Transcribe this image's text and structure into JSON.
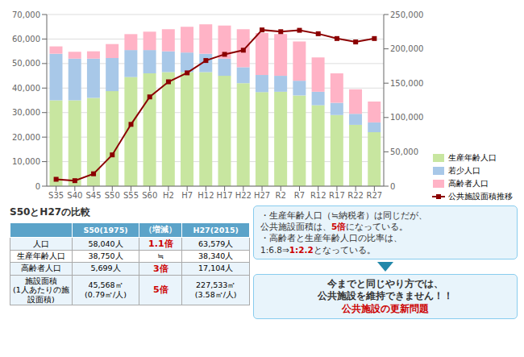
{
  "chart_data": {
    "type": "bar",
    "title": "S50とH27の比較",
    "stacked": true,
    "grid": true,
    "legend": "lower right",
    "categories": [
      "S35",
      "S40",
      "S45",
      "S50",
      "S55",
      "S60",
      "H2",
      "H7",
      "H12",
      "H17",
      "H22",
      "H27",
      "R2",
      "R7",
      "R12",
      "R17",
      "R22",
      "R27"
    ],
    "series": [
      {
        "name": "生産年齢人口",
        "color": "#c8e6a0",
        "values": [
          35000,
          35000,
          36000,
          38750,
          44500,
          46000,
          46500,
          46500,
          46500,
          45000,
          42000,
          38340,
          38500,
          37000,
          33000,
          29000,
          25000,
          22000
        ]
      },
      {
        "name": "若少人口",
        "color": "#a8c8e8",
        "values": [
          19000,
          17000,
          16000,
          13500,
          11000,
          9500,
          8500,
          8000,
          7500,
          7000,
          6500,
          7000,
          6500,
          6000,
          5500,
          5000,
          4500,
          4000
        ]
      },
      {
        "name": "高齢者人口",
        "color": "#ffb3c6",
        "values": [
          3000,
          2800,
          3000,
          5699,
          6500,
          7500,
          9000,
          10500,
          12000,
          13500,
          15500,
          17104,
          17000,
          16000,
          14000,
          12000,
          10000,
          8500
        ]
      },
      {
        "name": "公共施設面積推移",
        "type": "line",
        "axis": "y2",
        "color": "#8B0000",
        "marker": "square",
        "values": [
          10000,
          8000,
          18000,
          45568,
          90000,
          130000,
          152000,
          165000,
          183000,
          192000,
          198000,
          227533,
          225000,
          227000,
          222000,
          215000,
          210000,
          215000
        ]
      }
    ],
    "ylim": [
      0,
      70000
    ],
    "yticks": [
      0,
      {
        "value": 10000,
        "label": "10,000"
      },
      {
        "value": 20000,
        "label": "20,000"
      },
      {
        "value": 30000,
        "label": "30,000"
      },
      {
        "value": 40000,
        "label": "40,000"
      },
      {
        "value": 50000,
        "label": "50,000"
      },
      {
        "value": 60000,
        "label": "60,000"
      },
      {
        "value": 70000,
        "label": "70,000"
      }
    ],
    "y2lim": [
      0,
      250000
    ],
    "y2ticks": [
      0,
      {
        "value": 50000,
        "label": "50,000"
      },
      {
        "value": 100000,
        "label": "100,000"
      },
      {
        "value": 150000,
        "label": "150,000"
      },
      {
        "value": 200000,
        "label": "200,000"
      },
      {
        "value": 250000,
        "label": "250,000"
      }
    ],
    "table": {
      "columns": [
        null,
        "S50(1975)",
        "（増減）",
        "H27(2015)"
      ],
      "rows": [
        [
          "人口",
          "58,040人",
          {
            "text": "1.1倍",
            "color": "#cc0000"
          },
          "63,579人"
        ],
        [
          "生産年齢人口",
          "38,750人",
          "≒",
          "38,340人"
        ],
        [
          "高齢者人口",
          "5,699人",
          {
            "text": "3倍",
            "color": "#cc0000"
          },
          "17,104人"
        ],
        [
          "施設面積\n(1人あたりの施\n設面積)",
          "45,568㎡\n(0.79㎡/人)",
          {
            "text": "5倍",
            "color": "#cc0000"
          },
          "227,533㎡\n(3.58㎡/人)"
        ]
      ]
    },
    "annotations": [
      {
        "lines": [
          [
            {
              "text": "・生産年齢人口（≒納税者）は同じだが、"
            }
          ],
          [
            {
              "text": "公共施設面積は、"
            },
            {
              "text": "5倍",
              "color": "#cc0000"
            },
            {
              "text": "になっている。"
            }
          ],
          [
            {
              "text": "・高齢者と生産年齢人口の比率は、"
            }
          ],
          [
            {
              "text": "1:6.8⇒"
            },
            {
              "text": "1:2.2",
              "color": "#cc0000"
            },
            {
              "text": "となっている。"
            }
          ]
        ]
      },
      {
        "lines": [
          [
            {
              "text": "今までと同じやり方では、"
            }
          ],
          [
            {
              "text": "公共施設を維持できません！！"
            }
          ],
          [
            {
              "text": "公共施設の更新問題",
              "color": "#cc0000"
            }
          ]
        ]
      }
    ]
  }
}
